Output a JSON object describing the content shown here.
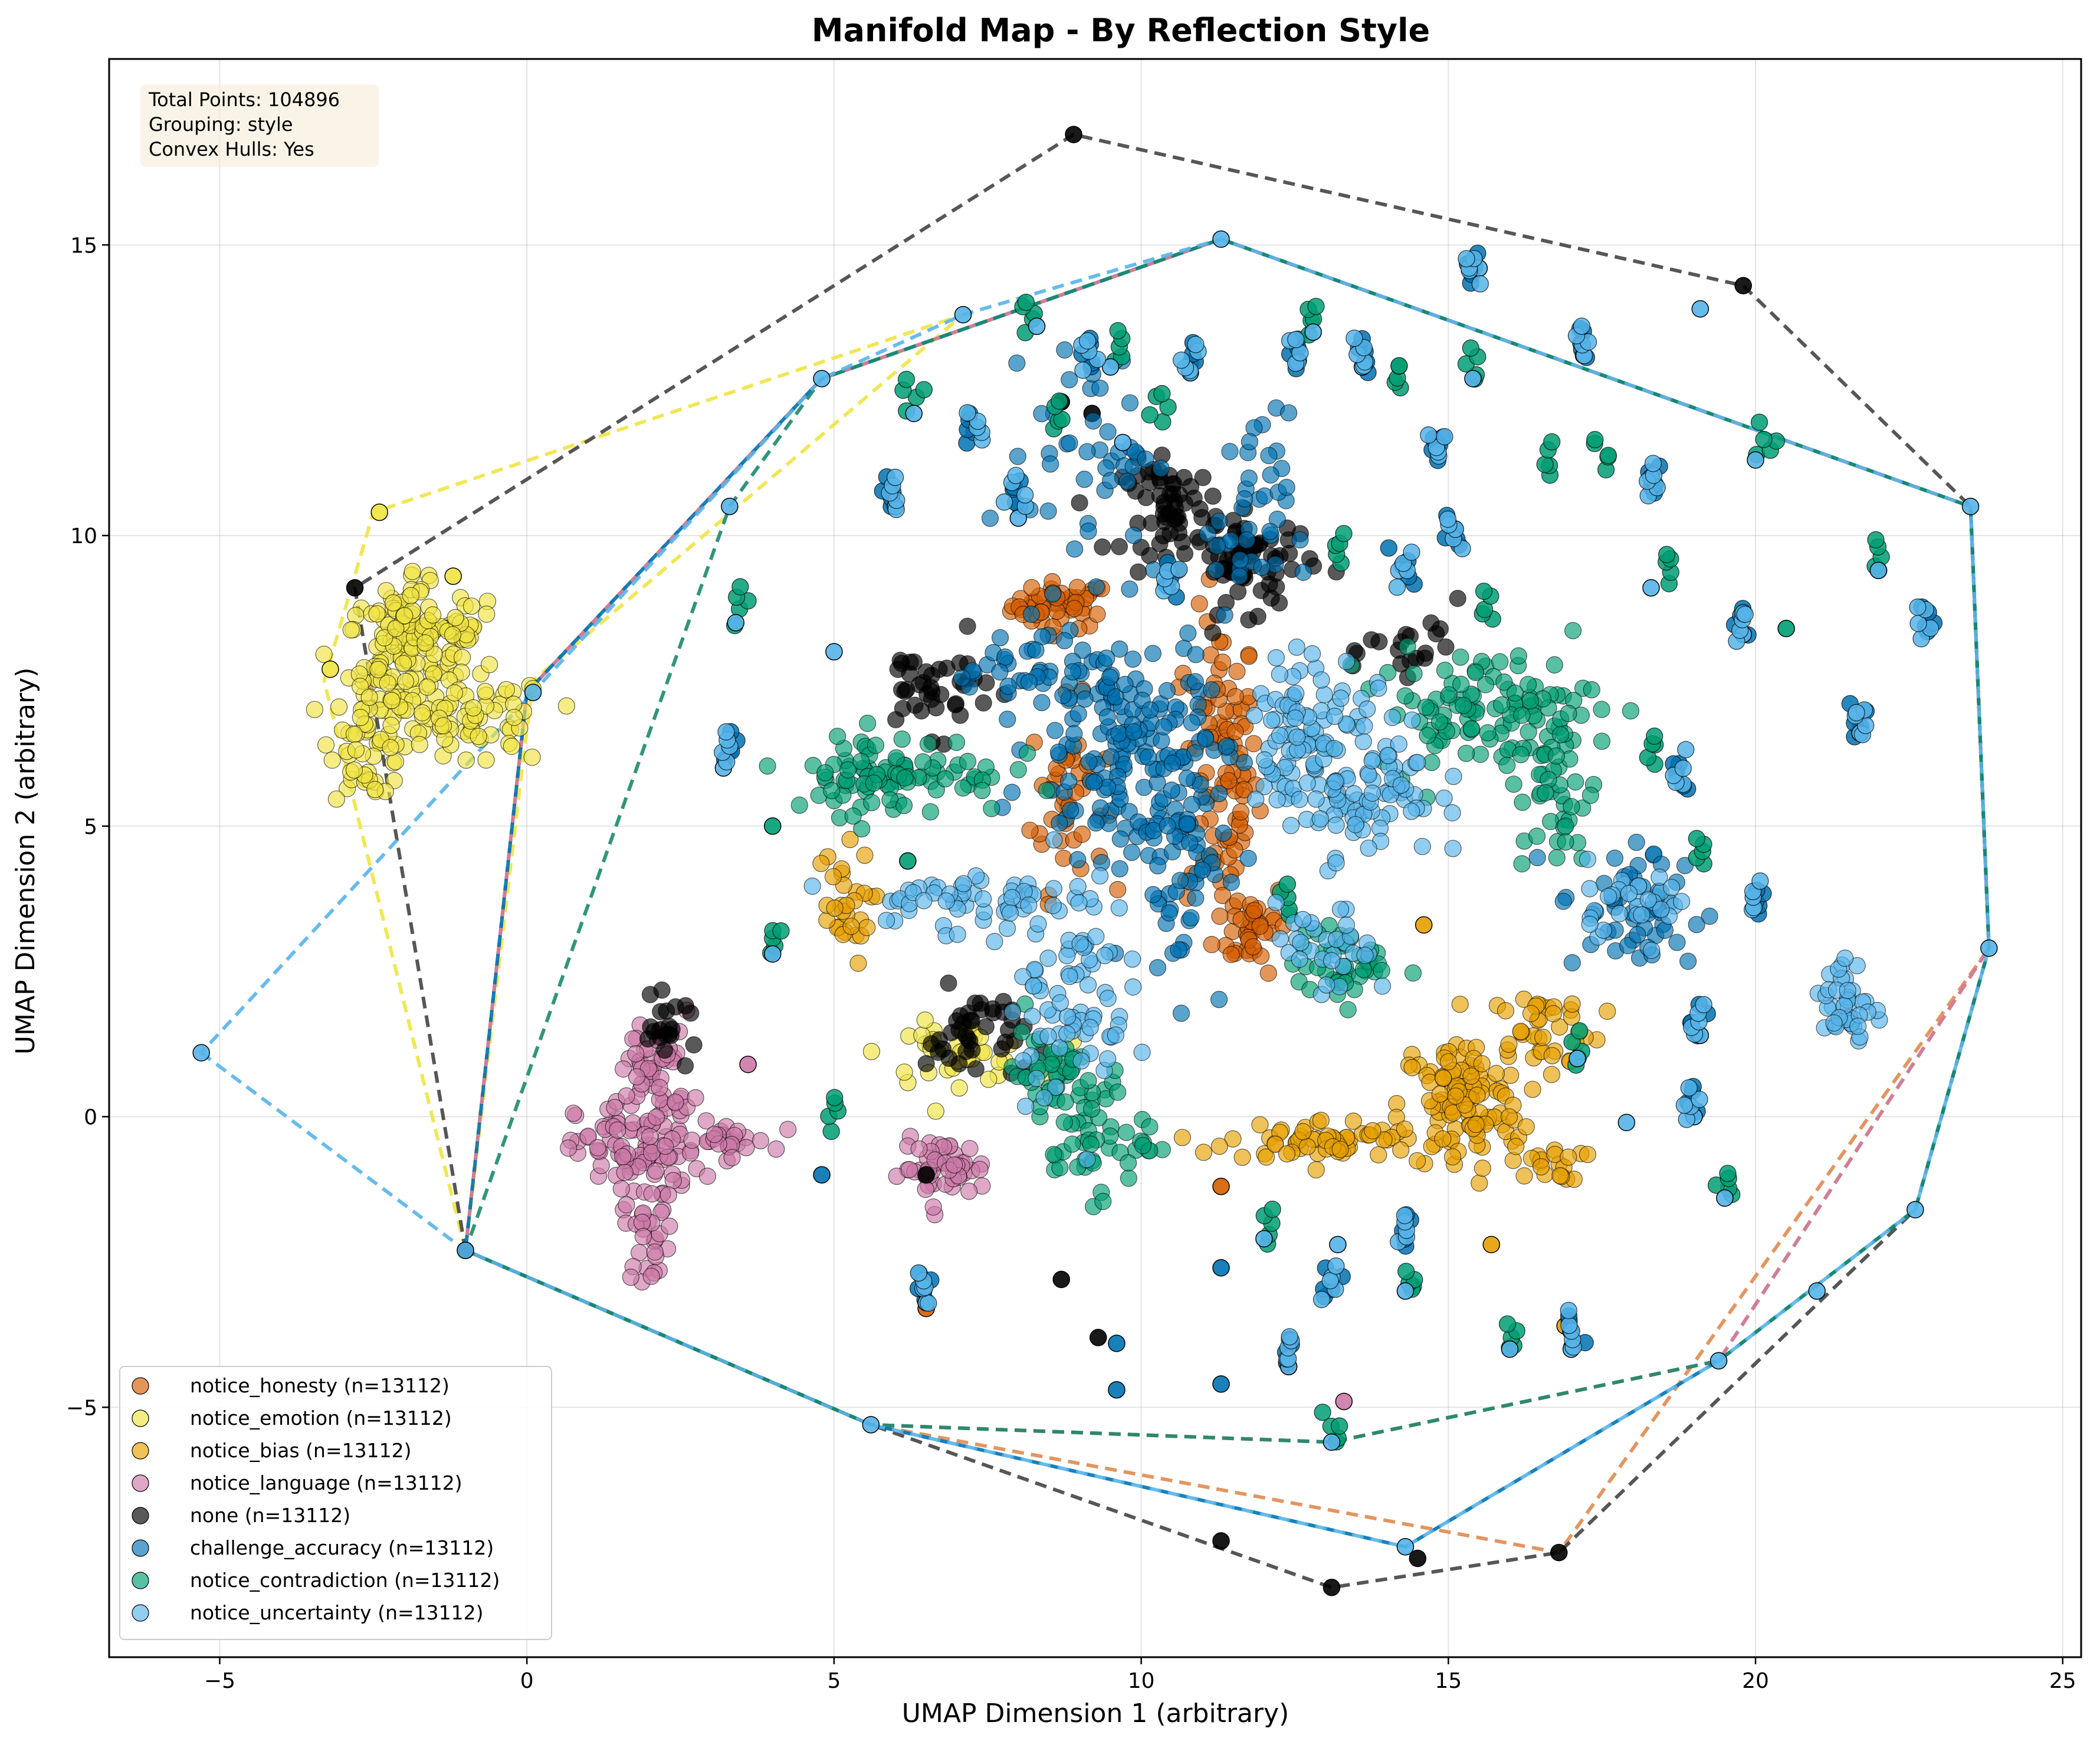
{
  "chart_data": {
    "type": "scatter",
    "title": "Manifold Map - By Reflection Style",
    "xlabel": "UMAP Dimension 1 (arbitrary)",
    "ylabel": "UMAP Dimension 2 (arbitrary)",
    "xlim": [
      -6.8,
      25.3
    ],
    "ylim": [
      -9.3,
      18.2
    ],
    "xticks": [
      -5,
      0,
      5,
      10,
      15,
      20,
      25
    ],
    "yticks": [
      -5,
      0,
      5,
      10,
      15
    ],
    "grid": true,
    "legend_position": "lower-left",
    "info_box": {
      "lines": [
        "Total Points: 104896",
        "Grouping: style",
        "Convex Hulls: Yes"
      ]
    },
    "series": [
      {
        "name": "notice_honesty (n=13112)",
        "color": "#D55E00",
        "hull_color": "#E08A4F",
        "hull": [
          [
            -1,
            -2.3
          ],
          [
            5.6,
            -5.3
          ],
          [
            16.8,
            -7.5
          ],
          [
            23.8,
            2.9
          ],
          [
            23.5,
            10.5
          ],
          [
            11.3,
            15.1
          ],
          [
            4.8,
            12.7
          ],
          [
            0,
            7.3
          ]
        ],
        "clusters": [
          {
            "cx": 8.7,
            "cy": 8.8,
            "sx": 0.4,
            "sy": 0.2,
            "n": 50
          },
          {
            "cx": 11.3,
            "cy": 6.0,
            "sx": 0.3,
            "sy": 1.3,
            "n": 90
          },
          {
            "cx": 11.8,
            "cy": 3.3,
            "sx": 0.3,
            "sy": 0.4,
            "n": 40
          },
          {
            "cx": 8.8,
            "cy": 5.5,
            "sx": 0.3,
            "sy": 0.8,
            "n": 40
          }
        ],
        "singles": [
          [
            11.3,
            -1.2
          ],
          [
            6.5,
            -3.3
          ],
          [
            12.4,
            -4.3
          ]
        ]
      },
      {
        "name": "notice_emotion (n=13112)",
        "color": "#F0E442",
        "hull_color": "#F0E442",
        "hull": [
          [
            -1,
            -2.3
          ],
          [
            -3.3,
            7.5
          ],
          [
            -2.5,
            10.4
          ],
          [
            7.1,
            13.8
          ],
          [
            0.1,
            7.5
          ],
          [
            -0.1,
            5.8
          ]
        ],
        "clusters": [
          {
            "cx": -2.0,
            "cy": 7.8,
            "sx": 0.45,
            "sy": 0.65,
            "n": 120
          },
          {
            "cx": -1.6,
            "cy": 8.4,
            "sx": 0.6,
            "sy": 0.3,
            "n": 60
          },
          {
            "cx": -0.8,
            "cy": 6.8,
            "sx": 0.6,
            "sy": 0.4,
            "n": 60
          },
          {
            "cx": -2.6,
            "cy": 6.5,
            "sx": 0.3,
            "sy": 0.5,
            "n": 40
          },
          {
            "cx": 7.0,
            "cy": 1.1,
            "sx": 0.6,
            "sy": 0.25,
            "n": 40
          }
        ],
        "singles": [
          [
            -2.4,
            10.4
          ],
          [
            -1.2,
            9.3
          ],
          [
            -3.2,
            7.7
          ]
        ]
      },
      {
        "name": "notice_bias (n=13112)",
        "color": "#E69F00",
        "hull_color": "#E69F00",
        "hull": [
          [
            -1,
            -2.3
          ],
          [
            5.6,
            -5.3
          ],
          [
            13.1,
            -5.6
          ],
          [
            19.4,
            -4.2
          ],
          [
            23.8,
            2.9
          ],
          [
            23.5,
            10.5
          ],
          [
            11.3,
            15.1
          ],
          [
            4.8,
            12.7
          ],
          [
            0,
            7.3
          ]
        ],
        "clusters": [
          {
            "cx": 15.2,
            "cy": 0.2,
            "sx": 0.5,
            "sy": 0.6,
            "n": 110
          },
          {
            "cx": 13.0,
            "cy": -0.4,
            "sx": 0.8,
            "sy": 0.18,
            "n": 60
          },
          {
            "cx": 16.5,
            "cy": 1.5,
            "sx": 0.5,
            "sy": 0.4,
            "n": 40
          },
          {
            "cx": 5.1,
            "cy": 3.6,
            "sx": 0.25,
            "sy": 0.5,
            "n": 30
          },
          {
            "cx": 16.6,
            "cy": -0.8,
            "sx": 0.3,
            "sy": 0.15,
            "n": 20
          }
        ],
        "singles": [
          [
            15.7,
            -2.2
          ],
          [
            16.9,
            -3.6
          ],
          [
            14.6,
            3.3
          ]
        ]
      },
      {
        "name": "notice_language (n=13112)",
        "color": "#CC79A7",
        "hull_color": "#CC79A7",
        "hull": [
          [
            -1,
            -2.3
          ],
          [
            5.6,
            -5.3
          ],
          [
            13.1,
            -5.6
          ],
          [
            19.4,
            -4.2
          ],
          [
            23.8,
            2.9
          ],
          [
            23.5,
            10.5
          ],
          [
            11.3,
            15.1
          ],
          [
            4.8,
            12.7
          ],
          [
            0,
            7.3
          ]
        ],
        "clusters": [
          {
            "cx": 1.8,
            "cy": -0.6,
            "sx": 0.5,
            "sy": 0.45,
            "n": 90
          },
          {
            "cx": 2.1,
            "cy": 0.8,
            "sx": 0.3,
            "sy": 0.5,
            "n": 50
          },
          {
            "cx": 2.0,
            "cy": -2.0,
            "sx": 0.2,
            "sy": 0.4,
            "n": 30
          },
          {
            "cx": 3.2,
            "cy": -0.4,
            "sx": 0.4,
            "sy": 0.15,
            "n": 30
          },
          {
            "cx": 6.8,
            "cy": -0.9,
            "sx": 0.35,
            "sy": 0.25,
            "n": 50
          }
        ],
        "singles": [
          [
            3.6,
            0.9
          ],
          [
            13.3,
            -4.9
          ]
        ]
      },
      {
        "name": "none (n=13112)",
        "color": "#000000",
        "hull_color": "#444444",
        "hull": [
          [
            -1,
            -2.3
          ],
          [
            -2.8,
            9.1
          ],
          [
            8.9,
            16.9
          ],
          [
            19.8,
            14.3
          ],
          [
            23.5,
            10.5
          ],
          [
            23.8,
            2.9
          ],
          [
            22.6,
            -1.6
          ],
          [
            16.8,
            -7.5
          ],
          [
            13.1,
            -8.1
          ],
          [
            5.6,
            -5.3
          ]
        ],
        "clusters": [
          {
            "cx": 10.5,
            "cy": 10.5,
            "sx": 0.4,
            "sy": 0.4,
            "n": 60
          },
          {
            "cx": 11.8,
            "cy": 9.5,
            "sx": 0.5,
            "sy": 0.4,
            "n": 60
          },
          {
            "cx": 7.3,
            "cy": 1.4,
            "sx": 0.4,
            "sy": 0.4,
            "n": 40
          },
          {
            "cx": 6.6,
            "cy": 7.4,
            "sx": 0.5,
            "sy": 0.4,
            "n": 40
          },
          {
            "cx": 2.3,
            "cy": 1.5,
            "sx": 0.25,
            "sy": 0.25,
            "n": 20
          },
          {
            "cx": 14.5,
            "cy": 8.0,
            "sx": 0.4,
            "sy": 0.4,
            "n": 20
          }
        ],
        "singles": [
          [
            8.9,
            16.9
          ],
          [
            19.8,
            14.3
          ],
          [
            -2.8,
            9.1
          ],
          [
            8.7,
            -2.8
          ],
          [
            9.3,
            -3.8
          ],
          [
            11.3,
            -7.3
          ],
          [
            13.1,
            -8.1
          ],
          [
            14.5,
            -7.6
          ],
          [
            16.8,
            -7.5
          ],
          [
            6.5,
            -1.0
          ],
          [
            -1,
            -2.3
          ],
          [
            8.7,
            12.3
          ],
          [
            9.2,
            12.1
          ]
        ]
      },
      {
        "name": "challenge_accuracy (n=13112)",
        "color": "#0072B2",
        "hull_color": "#0072B2",
        "hull": [
          [
            -1,
            -2.3
          ],
          [
            5.6,
            -5.3
          ],
          [
            14.3,
            -7.4
          ],
          [
            19.4,
            -4.2
          ],
          [
            22.6,
            -1.6
          ],
          [
            23.8,
            2.9
          ],
          [
            23.5,
            10.5
          ],
          [
            11.3,
            15.1
          ],
          [
            4.8,
            12.7
          ],
          [
            0,
            7.3
          ]
        ],
        "clusters": [
          {
            "cx": 9.6,
            "cy": 6.5,
            "sx": 0.7,
            "sy": 1.0,
            "n": 150
          },
          {
            "cx": 10.6,
            "cy": 4.8,
            "sx": 0.4,
            "sy": 1.3,
            "n": 80
          },
          {
            "cx": 11.8,
            "cy": 10.3,
            "sx": 0.3,
            "sy": 0.9,
            "n": 40
          },
          {
            "cx": 18.0,
            "cy": 3.5,
            "sx": 0.6,
            "sy": 0.6,
            "n": 50
          },
          {
            "cx": 9.2,
            "cy": 11.5,
            "sx": 0.5,
            "sy": 0.8,
            "n": 40
          },
          {
            "cx": 8.0,
            "cy": 7.8,
            "sx": 0.5,
            "sy": 0.4,
            "n": 30
          }
        ],
        "singles": [
          [
            4.8,
            -1.0
          ],
          [
            11.3,
            -2.6
          ],
          [
            9.6,
            -3.9
          ],
          [
            11.3,
            -4.6
          ],
          [
            9.6,
            -4.7
          ]
        ]
      },
      {
        "name": "notice_contradiction (n=13112)",
        "color": "#009E73",
        "hull_color": "#1B8A6B",
        "hull": [
          [
            -1,
            -2.3
          ],
          [
            5.6,
            -5.3
          ],
          [
            13.1,
            -5.6
          ],
          [
            19.4,
            -4.2
          ],
          [
            22.6,
            -1.6
          ],
          [
            23.8,
            2.9
          ],
          [
            23.5,
            10.5
          ],
          [
            11.3,
            15.1
          ],
          [
            4.8,
            12.7
          ],
          [
            3.3,
            10.5
          ]
        ],
        "clusters": [
          {
            "cx": 6.0,
            "cy": 5.9,
            "sx": 0.9,
            "sy": 0.35,
            "n": 90
          },
          {
            "cx": 15.6,
            "cy": 7.0,
            "sx": 0.9,
            "sy": 0.5,
            "n": 110
          },
          {
            "cx": 16.8,
            "cy": 5.5,
            "sx": 0.3,
            "sy": 0.7,
            "n": 40
          },
          {
            "cx": 9.1,
            "cy": -0.2,
            "sx": 0.5,
            "sy": 0.6,
            "n": 60
          },
          {
            "cx": 13.3,
            "cy": 2.6,
            "sx": 0.4,
            "sy": 0.3,
            "n": 40
          },
          {
            "cx": 8.5,
            "cy": 0.8,
            "sx": 0.3,
            "sy": 0.5,
            "n": 30
          }
        ],
        "singles": [
          [
            4.0,
            5.0
          ],
          [
            6.2,
            4.4
          ],
          [
            20.5,
            8.4
          ]
        ]
      },
      {
        "name": "notice_uncertainty (n=13112)",
        "color": "#56B4E9",
        "hull_color": "#56B4E9",
        "hull": [
          [
            -5.3,
            1.1
          ],
          [
            -1,
            -2.3
          ],
          [
            5.6,
            -5.3
          ],
          [
            14.3,
            -7.4
          ],
          [
            19.4,
            -4.2
          ],
          [
            22.6,
            -1.6
          ],
          [
            23.8,
            2.9
          ],
          [
            23.5,
            10.5
          ],
          [
            11.3,
            15.1
          ],
          [
            7.1,
            13.8
          ],
          [
            4.8,
            12.7
          ]
        ],
        "clusters": [
          {
            "cx": 13.4,
            "cy": 5.8,
            "sx": 0.7,
            "sy": 0.7,
            "n": 120
          },
          {
            "cx": 12.8,
            "cy": 7.0,
            "sx": 0.5,
            "sy": 0.5,
            "n": 50
          },
          {
            "cx": 8.8,
            "cy": 2.3,
            "sx": 0.5,
            "sy": 1.0,
            "n": 80
          },
          {
            "cx": 7.0,
            "cy": 3.7,
            "sx": 0.8,
            "sy": 0.3,
            "n": 50
          },
          {
            "cx": 21.5,
            "cy": 1.9,
            "sx": 0.2,
            "sy": 0.4,
            "n": 40
          },
          {
            "cx": 18.0,
            "cy": 3.8,
            "sx": 0.5,
            "sy": 0.3,
            "n": 30
          },
          {
            "cx": 13.0,
            "cy": 2.8,
            "sx": 0.4,
            "sy": 0.4,
            "n": 30
          }
        ],
        "singles": [
          [
            -5.3,
            1.1
          ],
          [
            -1,
            -2.3
          ],
          [
            5.6,
            -5.3
          ],
          [
            13.1,
            -5.6
          ],
          [
            14.3,
            -7.4
          ],
          [
            19.4,
            -4.2
          ],
          [
            22.6,
            -1.6
          ],
          [
            21.0,
            -3.0
          ],
          [
            23.8,
            2.9
          ],
          [
            23.5,
            10.5
          ],
          [
            22.0,
            9.4
          ],
          [
            20.0,
            11.3
          ],
          [
            19.1,
            13.9
          ],
          [
            15.5,
            14.6
          ],
          [
            11.3,
            15.1
          ],
          [
            7.1,
            13.8
          ],
          [
            4.8,
            12.7
          ],
          [
            3.3,
            10.5
          ],
          [
            3.4,
            8.5
          ],
          [
            0.1,
            7.3
          ],
          [
            6.3,
            12.1
          ],
          [
            8.3,
            13.6
          ],
          [
            9.5,
            12.9
          ],
          [
            10.8,
            12.8
          ],
          [
            12.8,
            13.5
          ],
          [
            13.6,
            12.9
          ],
          [
            15.4,
            12.7
          ],
          [
            17.2,
            13.1
          ],
          [
            18.3,
            11.0
          ],
          [
            21.7,
            6.6
          ],
          [
            18.3,
            9.1
          ],
          [
            19.8,
            8.3
          ],
          [
            16.0,
            -4.0
          ],
          [
            17.0,
            -4.0
          ],
          [
            14.3,
            -3.0
          ],
          [
            12.4,
            -4.3
          ],
          [
            13.2,
            -2.2
          ],
          [
            12.0,
            -2.1
          ],
          [
            6.5,
            -3.2
          ],
          [
            17.9,
            -0.1
          ],
          [
            19.0,
            0.0
          ],
          [
            19.5,
            -1.4
          ],
          [
            19.1,
            1.4
          ],
          [
            17.1,
            1.0
          ],
          [
            6.0,
            10.5
          ],
          [
            5.0,
            8.0
          ],
          [
            4.0,
            2.8
          ],
          [
            3.2,
            6.0
          ],
          [
            9.7,
            11.6
          ],
          [
            8.0,
            10.3
          ]
        ]
      }
    ],
    "stems": [
      [
        3.4,
        8.6
      ],
      [
        3.3,
        6.1
      ],
      [
        4.0,
        2.8
      ],
      [
        6.0,
        10.5
      ],
      [
        6.2,
        12.2
      ],
      [
        7.3,
        11.6
      ],
      [
        8.1,
        13.6
      ],
      [
        8.0,
        10.5
      ],
      [
        8.6,
        11.8
      ],
      [
        9.1,
        12.9
      ],
      [
        9.6,
        13.0
      ],
      [
        10.8,
        12.8
      ],
      [
        10.3,
        12.0
      ],
      [
        12.5,
        12.9
      ],
      [
        12.8,
        13.5
      ],
      [
        13.6,
        12.9
      ],
      [
        14.2,
        12.5
      ],
      [
        14.8,
        11.3
      ],
      [
        15.4,
        12.7
      ],
      [
        15.4,
        14.4
      ],
      [
        16.6,
        11.1
      ],
      [
        17.2,
        13.1
      ],
      [
        17.5,
        11.2
      ],
      [
        18.3,
        10.7
      ],
      [
        18.6,
        9.2
      ],
      [
        19.8,
        8.3
      ],
      [
        20.2,
        11.4
      ],
      [
        21.7,
        6.6
      ],
      [
        22.0,
        9.4
      ],
      [
        22.8,
        8.3
      ],
      [
        18.3,
        6.1
      ],
      [
        18.8,
        5.7
      ],
      [
        19.1,
        4.3
      ],
      [
        19.1,
        1.4
      ],
      [
        17.1,
        0.9
      ],
      [
        19.0,
        0.0
      ],
      [
        19.5,
        -1.4
      ],
      [
        14.3,
        -2.2
      ],
      [
        14.4,
        -3.1
      ],
      [
        13.1,
        -3.1
      ],
      [
        12.0,
        -2.1
      ],
      [
        12.4,
        -4.3
      ],
      [
        16.0,
        -4.0
      ],
      [
        17.0,
        -3.9
      ],
      [
        13.1,
        -5.6
      ],
      [
        6.5,
        -3.2
      ],
      [
        5.0,
        -0.2
      ],
      [
        15.1,
        9.8
      ],
      [
        15.6,
        8.5
      ],
      [
        14.3,
        9.2
      ],
      [
        13.2,
        9.5
      ],
      [
        10.5,
        9.0
      ],
      [
        12.4,
        3.5
      ],
      [
        20.0,
        3.5
      ]
    ]
  }
}
